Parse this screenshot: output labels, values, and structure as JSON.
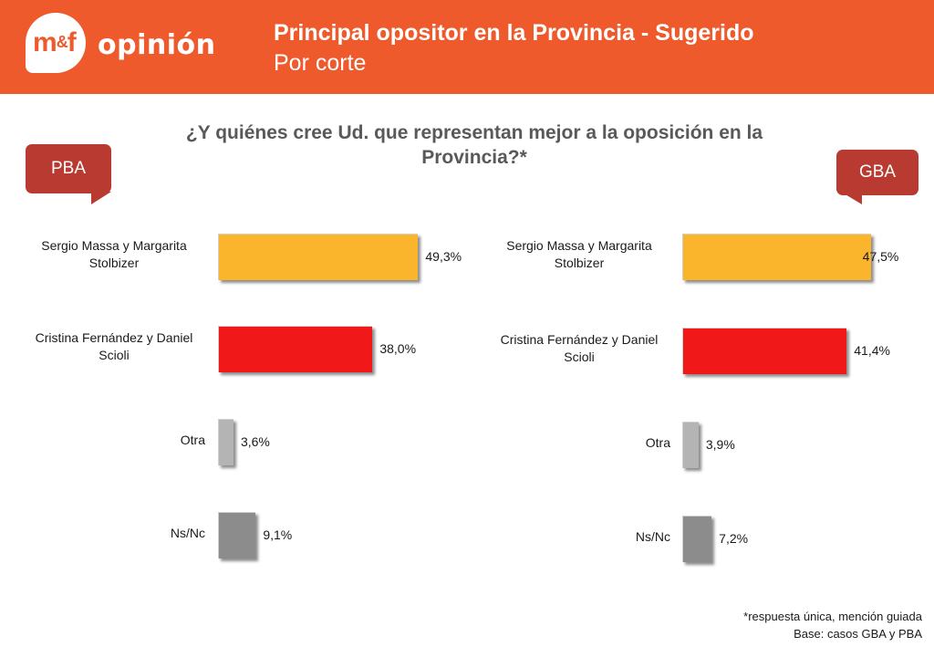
{
  "header": {
    "logo_mf": "m",
    "logo_amp": "&",
    "logo_f": "f",
    "logo_word": "opinión",
    "title": "Principal opositor en la Provincia - Sugerido",
    "subtitle": "Por corte"
  },
  "question": "¿Y quiénes cree Ud. que representan mejor a la oposición en la Provincia?*",
  "colors": {
    "header": "#ee5a2c",
    "callout": "#b83a30",
    "massa": "#fbb52c",
    "cristina": "#f01818",
    "otra": "#b4b4b4",
    "nsnc": "#8c8c8c"
  },
  "chart_data": [
    {
      "type": "bar",
      "title": "PBA",
      "categories": [
        "Sergio Massa y Margarita Stolbizer",
        "Cristina Fernández y Daniel Scioli",
        "Otra",
        "Ns/Nc"
      ],
      "values": [
        49.3,
        38.0,
        3.6,
        9.1
      ],
      "value_labels": [
        "49,3%",
        "38,0%",
        "3,6%",
        "9,1%"
      ],
      "unit": "%"
    },
    {
      "type": "bar",
      "title": "GBA",
      "categories": [
        "Sergio Massa y Margarita Stolbizer",
        "Cristina Fernández y Daniel Scioli",
        "Otra",
        "Ns/Nc"
      ],
      "values": [
        47.5,
        41.4,
        3.9,
        7.2
      ],
      "value_labels": [
        "47,5%",
        "41,4%",
        "3,9%",
        "7,2%"
      ],
      "unit": "%"
    }
  ],
  "footnote": {
    "line1": "*respuesta única, mención guiada",
    "line2": "Base: casos GBA y PBA"
  }
}
